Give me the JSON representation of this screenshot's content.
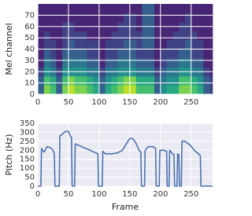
{
  "chart_data": [
    {
      "type": "heatmap",
      "ylabel": "Mel channel",
      "cmap": "viridis",
      "x_edges": [
        0,
        10,
        20,
        30,
        40,
        50,
        60,
        70,
        80,
        90,
        100,
        110,
        120,
        130,
        140,
        150,
        160,
        170,
        180,
        190,
        200,
        210,
        220,
        230,
        240,
        250,
        260,
        270,
        280,
        285
      ],
      "y_edges": [
        0,
        8,
        16,
        24,
        32,
        40,
        48,
        56,
        64,
        72,
        80
      ],
      "z": [
        [
          0.3,
          0.8,
          0.7,
          0.3,
          0.8,
          0.9,
          0.8,
          0.8,
          0.7,
          0.6,
          0.3,
          0.6,
          0.7,
          0.8,
          0.9,
          0.9,
          0.7,
          0.7,
          0.7,
          0.3,
          0.5,
          0.6,
          0.6,
          0.8,
          0.8,
          0.7,
          0.6,
          0.3,
          0.2
        ],
        [
          0.3,
          0.7,
          0.6,
          0.3,
          0.7,
          0.8,
          0.7,
          0.7,
          0.6,
          0.5,
          0.3,
          0.5,
          0.6,
          0.7,
          0.8,
          0.8,
          0.6,
          0.6,
          0.6,
          0.3,
          0.4,
          0.5,
          0.5,
          0.7,
          0.7,
          0.6,
          0.5,
          0.3,
          0.2
        ],
        [
          0.2,
          0.5,
          0.4,
          0.2,
          0.5,
          0.5,
          0.5,
          0.5,
          0.4,
          0.4,
          0.2,
          0.4,
          0.4,
          0.5,
          0.5,
          0.5,
          0.4,
          0.4,
          0.4,
          0.2,
          0.3,
          0.4,
          0.4,
          0.5,
          0.5,
          0.4,
          0.4,
          0.2,
          0.1
        ],
        [
          0.1,
          0.4,
          0.3,
          0.1,
          0.4,
          0.4,
          0.4,
          0.4,
          0.3,
          0.3,
          0.1,
          0.3,
          0.3,
          0.4,
          0.4,
          0.4,
          0.3,
          0.3,
          0.3,
          0.1,
          0.2,
          0.3,
          0.3,
          0.4,
          0.4,
          0.3,
          0.3,
          0.1,
          0.1
        ],
        [
          0.1,
          0.3,
          0.2,
          0.1,
          0.3,
          0.3,
          0.3,
          0.3,
          0.2,
          0.2,
          0.1,
          0.2,
          0.2,
          0.3,
          0.3,
          0.3,
          0.2,
          0.2,
          0.2,
          0.1,
          0.2,
          0.2,
          0.2,
          0.3,
          0.3,
          0.2,
          0.2,
          0.1,
          0.1
        ],
        [
          0.1,
          0.2,
          0.2,
          0.1,
          0.2,
          0.3,
          0.2,
          0.2,
          0.2,
          0.2,
          0.1,
          0.2,
          0.2,
          0.2,
          0.3,
          0.3,
          0.2,
          0.3,
          0.3,
          0.1,
          0.1,
          0.2,
          0.2,
          0.2,
          0.3,
          0.2,
          0.2,
          0.1,
          0.1
        ],
        [
          0.1,
          0.2,
          0.1,
          0.1,
          0.2,
          0.2,
          0.2,
          0.2,
          0.1,
          0.1,
          0.1,
          0.1,
          0.2,
          0.2,
          0.2,
          0.2,
          0.2,
          0.3,
          0.3,
          0.1,
          0.1,
          0.1,
          0.2,
          0.2,
          0.2,
          0.2,
          0.1,
          0.1,
          0.1
        ],
        [
          0.1,
          0.1,
          0.1,
          0.1,
          0.2,
          0.2,
          0.1,
          0.1,
          0.1,
          0.1,
          0.1,
          0.1,
          0.1,
          0.2,
          0.2,
          0.2,
          0.1,
          0.3,
          0.3,
          0.1,
          0.1,
          0.1,
          0.1,
          0.2,
          0.2,
          0.1,
          0.1,
          0.1,
          0.1
        ],
        [
          0.1,
          0.1,
          0.1,
          0.1,
          0.1,
          0.1,
          0.1,
          0.1,
          0.1,
          0.1,
          0.1,
          0.1,
          0.1,
          0.1,
          0.2,
          0.2,
          0.1,
          0.3,
          0.3,
          0.1,
          0.1,
          0.1,
          0.1,
          0.1,
          0.2,
          0.1,
          0.1,
          0.1,
          0.1
        ],
        [
          0.1,
          0.1,
          0.1,
          0.1,
          0.1,
          0.1,
          0.1,
          0.1,
          0.1,
          0.1,
          0.1,
          0.1,
          0.1,
          0.1,
          0.1,
          0.1,
          0.1,
          0.3,
          0.3,
          0.1,
          0.1,
          0.1,
          0.1,
          0.1,
          0.1,
          0.1,
          0.1,
          0.1,
          0.1
        ]
      ],
      "xlim": [
        0,
        285
      ],
      "ylim": [
        0,
        80
      ],
      "xticks": [
        0,
        50,
        100,
        150,
        200,
        250
      ],
      "yticks": [
        0,
        10,
        20,
        30,
        40,
        50,
        60,
        70
      ],
      "grid": true
    },
    {
      "type": "line",
      "xlabel": "Frame",
      "ylabel": "Pitch (Hz)",
      "color": "#4c72b0",
      "background": "#eaeaf2",
      "x": [
        0,
        5,
        6,
        10,
        12,
        15,
        20,
        25,
        27,
        28,
        35,
        36,
        40,
        45,
        50,
        53,
        55,
        56,
        60,
        61,
        65,
        75,
        85,
        95,
        98,
        99,
        105,
        106,
        110,
        120,
        130,
        138,
        145,
        150,
        155,
        160,
        165,
        168,
        169,
        174,
        175,
        180,
        188,
        192,
        193,
        198,
        199,
        205,
        210,
        211,
        214,
        215,
        220,
        222,
        223,
        227,
        228,
        230,
        231,
        234,
        235,
        240,
        248,
        255,
        262,
        265,
        266,
        285
      ],
      "values": [
        0,
        0,
        210,
        190,
        200,
        220,
        215,
        200,
        180,
        0,
        0,
        280,
        290,
        305,
        305,
        280,
        270,
        0,
        0,
        235,
        230,
        215,
        200,
        185,
        180,
        0,
        0,
        195,
        180,
        180,
        185,
        200,
        240,
        265,
        265,
        240,
        200,
        190,
        0,
        0,
        200,
        220,
        220,
        210,
        0,
        0,
        200,
        200,
        195,
        0,
        0,
        200,
        180,
        175,
        0,
        0,
        180,
        175,
        0,
        0,
        250,
        250,
        230,
        200,
        180,
        170,
        0,
        0
      ],
      "xlim": [
        0,
        285
      ],
      "ylim": [
        0,
        350
      ],
      "xticks": [
        0,
        50,
        100,
        150,
        200,
        250
      ],
      "yticks": [
        0,
        50,
        100,
        150,
        200,
        250,
        300,
        350
      ],
      "grid": true
    }
  ]
}
